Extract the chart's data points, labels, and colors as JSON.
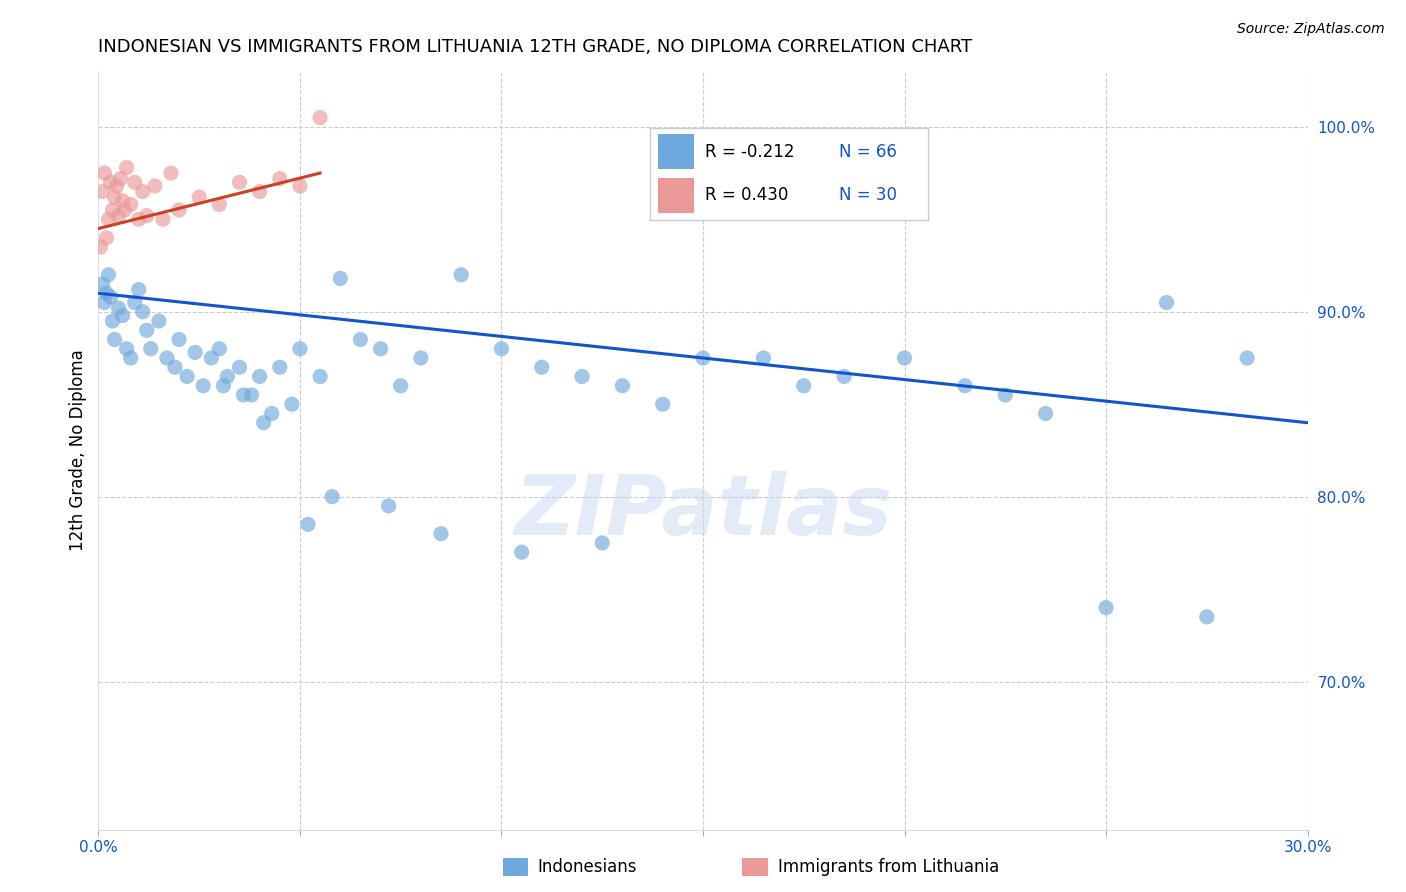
{
  "title": "INDONESIAN VS IMMIGRANTS FROM LITHUANIA 12TH GRADE, NO DIPLOMA CORRELATION CHART",
  "source": "Source: ZipAtlas.com",
  "ylabel": "12th Grade, No Diploma",
  "y_ticks": [
    70.0,
    80.0,
    90.0,
    100.0
  ],
  "y_tick_labels": [
    "70.0%",
    "80.0%",
    "90.0%",
    "100.0%"
  ],
  "x_range": [
    0.0,
    30.0
  ],
  "y_range": [
    62.0,
    103.0
  ],
  "legend_r_blue": "-0.212",
  "legend_n_blue": "66",
  "legend_r_pink": "0.430",
  "legend_n_pink": "30",
  "blue_color": "#6fa8dc",
  "pink_color": "#ea9999",
  "blue_line_color": "#1155cc",
  "pink_line_color": "#cc4125",
  "watermark": "ZIPatlas",
  "indonesians_x": [
    0.1,
    0.15,
    0.2,
    0.25,
    0.3,
    0.35,
    0.4,
    0.5,
    0.6,
    0.7,
    0.8,
    0.9,
    1.0,
    1.1,
    1.2,
    1.3,
    1.5,
    1.7,
    1.9,
    2.0,
    2.2,
    2.4,
    2.6,
    2.8,
    3.0,
    3.2,
    3.5,
    3.8,
    4.0,
    4.3,
    4.5,
    4.8,
    5.0,
    5.5,
    6.0,
    6.5,
    7.0,
    7.5,
    8.0,
    9.0,
    10.0,
    11.0,
    12.0,
    13.0,
    14.0,
    15.0,
    16.5,
    17.5,
    18.5,
    20.0,
    21.5,
    22.5,
    23.5,
    25.0,
    26.5,
    27.5,
    28.5,
    3.1,
    3.6,
    4.1,
    5.2,
    5.8,
    7.2,
    8.5,
    10.5,
    12.5
  ],
  "indonesians_y": [
    91.5,
    90.5,
    91.0,
    92.0,
    90.8,
    89.5,
    88.5,
    90.2,
    89.8,
    88.0,
    87.5,
    90.5,
    91.2,
    90.0,
    89.0,
    88.0,
    89.5,
    87.5,
    87.0,
    88.5,
    86.5,
    87.8,
    86.0,
    87.5,
    88.0,
    86.5,
    87.0,
    85.5,
    86.5,
    84.5,
    87.0,
    85.0,
    88.0,
    86.5,
    91.8,
    88.5,
    88.0,
    86.0,
    87.5,
    92.0,
    88.0,
    87.0,
    86.5,
    86.0,
    85.0,
    87.5,
    87.5,
    86.0,
    86.5,
    87.5,
    86.0,
    85.5,
    84.5,
    74.0,
    90.5,
    73.5,
    87.5,
    86.0,
    85.5,
    84.0,
    78.5,
    80.0,
    79.5,
    78.0,
    77.0,
    77.5
  ],
  "lithuania_x": [
    0.05,
    0.1,
    0.15,
    0.2,
    0.25,
    0.3,
    0.35,
    0.4,
    0.45,
    0.5,
    0.55,
    0.6,
    0.65,
    0.7,
    0.8,
    0.9,
    1.0,
    1.1,
    1.2,
    1.4,
    1.6,
    1.8,
    2.0,
    2.5,
    3.0,
    3.5,
    4.0,
    4.5,
    5.0,
    5.5
  ],
  "lithuania_y": [
    93.5,
    96.5,
    97.5,
    94.0,
    95.0,
    97.0,
    95.5,
    96.2,
    96.8,
    95.2,
    97.2,
    96.0,
    95.5,
    97.8,
    95.8,
    97.0,
    95.0,
    96.5,
    95.2,
    96.8,
    95.0,
    97.5,
    95.5,
    96.2,
    95.8,
    97.0,
    96.5,
    97.2,
    96.8,
    100.5
  ]
}
